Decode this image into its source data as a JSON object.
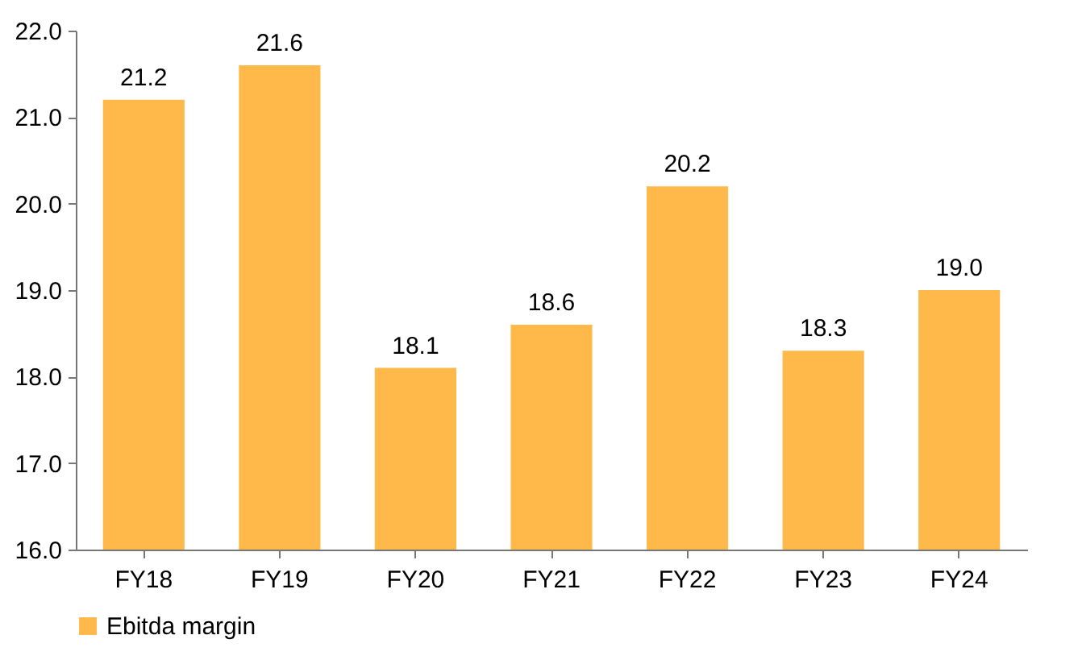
{
  "chart_data": {
    "type": "bar",
    "categories": [
      "FY18",
      "FY19",
      "FY20",
      "FY21",
      "FY22",
      "FY23",
      "FY24"
    ],
    "series": [
      {
        "name": "Ebitda margin",
        "color": "#ffb94a",
        "values": [
          21.2,
          21.6,
          18.1,
          18.6,
          20.2,
          18.3,
          19.0
        ],
        "value_labels": [
          "21.2",
          "21.6",
          "18.1",
          "18.6",
          "20.2",
          "18.3",
          "19.0"
        ]
      }
    ],
    "ylim": [
      16,
      22
    ],
    "yticks": [
      {
        "value": 16,
        "label": "16.0"
      },
      {
        "value": 17,
        "label": "17.0"
      },
      {
        "value": 18,
        "label": "18.0"
      },
      {
        "value": 19,
        "label": "19.0"
      },
      {
        "value": 20,
        "label": "20.0"
      },
      {
        "value": 21,
        "label": "21.0"
      },
      {
        "value": 22,
        "label": "22.0"
      }
    ],
    "legend": "bottom",
    "grid": false
  }
}
